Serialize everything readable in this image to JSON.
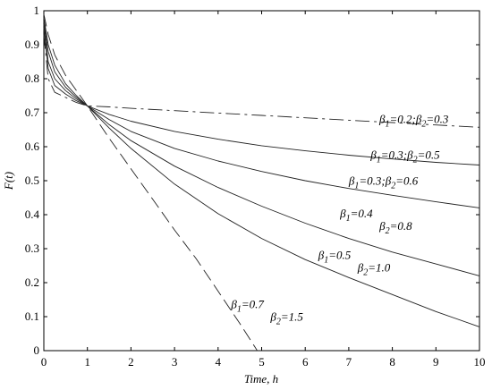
{
  "chart_data": {
    "type": "line",
    "xlabel": "Time, h",
    "ylabel": "F(t)",
    "xlim": [
      0,
      10
    ],
    "ylim": [
      0,
      1
    ],
    "xticks": [
      "0",
      "1",
      "2",
      "3",
      "4",
      "5",
      "6",
      "7",
      "8",
      "9",
      "10"
    ],
    "yticks": [
      "0",
      "0.1",
      "0.2",
      "0.3",
      "0.4",
      "0.5",
      "0.6",
      "0.7",
      "0.8",
      "0.9",
      "1"
    ],
    "grid": false,
    "series": [
      {
        "beta1": "0.2",
        "beta2": "0.3",
        "style": "dashdot",
        "x": [
          0,
          0.1,
          0.25,
          0.5,
          0.75,
          1,
          1.5,
          2,
          3,
          4,
          5,
          6,
          7,
          8,
          9,
          10
        ],
        "y": [
          0.93,
          0.8,
          0.76,
          0.745,
          0.73,
          0.72,
          0.717,
          0.713,
          0.706,
          0.699,
          0.692,
          0.685,
          0.678,
          0.671,
          0.664,
          0.657
        ]
      },
      {
        "beta1": "0.3",
        "beta2": "0.5",
        "style": "solid",
        "x": [
          0,
          0.1,
          0.25,
          0.5,
          0.75,
          1,
          1.5,
          2,
          3,
          4,
          5,
          6,
          7,
          8,
          9,
          10
        ],
        "y": [
          0.95,
          0.83,
          0.78,
          0.755,
          0.735,
          0.72,
          0.695,
          0.675,
          0.645,
          0.622,
          0.603,
          0.588,
          0.575,
          0.564,
          0.554,
          0.546
        ]
      },
      {
        "beta1": "0.3",
        "beta2": "0.6",
        "style": "solid",
        "x": [
          0,
          0.1,
          0.25,
          0.5,
          0.75,
          1,
          1.5,
          2,
          3,
          4,
          5,
          6,
          7,
          8,
          9,
          10
        ],
        "y": [
          0.96,
          0.85,
          0.8,
          0.765,
          0.74,
          0.72,
          0.68,
          0.645,
          0.595,
          0.558,
          0.527,
          0.5,
          0.477,
          0.457,
          0.438,
          0.42
        ]
      },
      {
        "beta1": "0.4",
        "beta2": "0.8",
        "style": "solid",
        "x": [
          0,
          0.1,
          0.25,
          0.5,
          0.75,
          1,
          1.5,
          2,
          3,
          4,
          5,
          6,
          7,
          8,
          9,
          10
        ],
        "y": [
          0.97,
          0.88,
          0.82,
          0.775,
          0.745,
          0.72,
          0.665,
          0.618,
          0.543,
          0.48,
          0.425,
          0.375,
          0.33,
          0.29,
          0.255,
          0.22
        ]
      },
      {
        "beta1": "0.5",
        "beta2": "1.0",
        "style": "solid",
        "x": [
          0,
          0.1,
          0.25,
          0.5,
          0.75,
          1,
          1.5,
          2,
          3,
          4,
          5,
          6,
          7,
          8,
          9,
          10
        ],
        "y": [
          0.98,
          0.9,
          0.84,
          0.785,
          0.75,
          0.72,
          0.655,
          0.595,
          0.49,
          0.403,
          0.33,
          0.268,
          0.215,
          0.165,
          0.115,
          0.07
        ]
      },
      {
        "beta1": "0.7",
        "beta2": "1.5",
        "style": "dashed",
        "x": [
          0,
          0.1,
          0.25,
          0.5,
          0.75,
          1,
          1.5,
          2,
          2.5,
          3,
          3.5,
          4,
          4.5,
          4.9
        ],
        "y": [
          0.99,
          0.93,
          0.87,
          0.81,
          0.765,
          0.72,
          0.625,
          0.535,
          0.445,
          0.355,
          0.27,
          0.175,
          0.08,
          0.0
        ]
      }
    ],
    "annotations": [
      {
        "b1": "0.2",
        "b2": "0.3",
        "sep": ";",
        "at": [
          7.7,
          0.67
        ],
        "layout": "inline"
      },
      {
        "b1": "0.3",
        "b2": "0.5",
        "sep": ";",
        "at": [
          7.5,
          0.565
        ],
        "layout": "inline"
      },
      {
        "b1": "0.3",
        "b2": "0.6",
        "sep": ";",
        "at": [
          7.0,
          0.488
        ],
        "layout": "inline"
      },
      {
        "b1": "0.4",
        "b2": "0.8",
        "sep": "",
        "at": [
          6.8,
          0.392
        ],
        "layout": "stacked"
      },
      {
        "b1": "0.5",
        "b2": "1.0",
        "sep": "",
        "at": [
          6.3,
          0.27
        ],
        "layout": "stacked"
      },
      {
        "b1": "0.7",
        "b2": "1.5",
        "sep": "",
        "at": [
          4.3,
          0.125
        ],
        "layout": "stacked"
      }
    ]
  }
}
